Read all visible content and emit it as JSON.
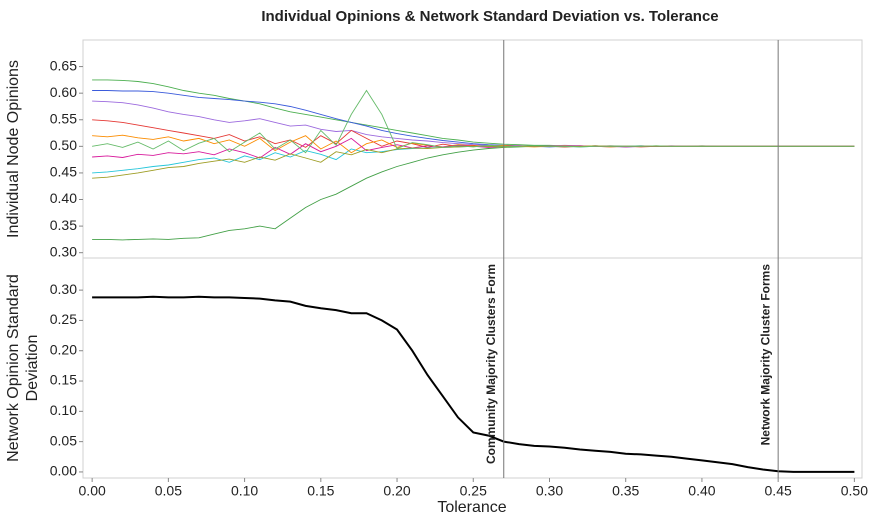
{
  "chart_data": [
    {
      "type": "line",
      "title": "Individual Opinions & Network Standard Deviation vs. Tolerance",
      "ylabel": "Individual Node Opinions",
      "xlim": [
        -0.006,
        0.505
      ],
      "ylim": [
        0.29,
        0.7
      ],
      "yticks": [
        {
          "value": 0.3,
          "label": "0.30"
        },
        {
          "value": 0.35,
          "label": "0.35"
        },
        {
          "value": 0.4,
          "label": "0.40"
        },
        {
          "value": 0.45,
          "label": "0.45"
        },
        {
          "value": 0.5,
          "label": "0.50"
        },
        {
          "value": 0.55,
          "label": "0.55"
        },
        {
          "value": 0.6,
          "label": "0.60"
        },
        {
          "value": 0.65,
          "label": "0.65"
        }
      ],
      "x": [
        0,
        0.01,
        0.02,
        0.03,
        0.04,
        0.05,
        0.06,
        0.07,
        0.08,
        0.09,
        0.1,
        0.11,
        0.12,
        0.13,
        0.14,
        0.15,
        0.16,
        0.17,
        0.18,
        0.19,
        0.2,
        0.21,
        0.22,
        0.23,
        0.24,
        0.25,
        0.26,
        0.27,
        0.28,
        0.29,
        0.3,
        0.31,
        0.32,
        0.33,
        0.34,
        0.35,
        0.36,
        0.37,
        0.38,
        0.39,
        0.4,
        0.41,
        0.42,
        0.43,
        0.44,
        0.45,
        0.46,
        0.47,
        0.48,
        0.49,
        0.5
      ],
      "series": [
        {
          "color": "#4caf50",
          "values": [
            0.625,
            0.625,
            0.624,
            0.622,
            0.618,
            0.612,
            0.605,
            0.6,
            0.596,
            0.59,
            0.585,
            0.58,
            0.572,
            0.565,
            0.56,
            0.555,
            0.55,
            0.545,
            0.54,
            0.535,
            0.53,
            0.525,
            0.52,
            0.515,
            0.512,
            0.508,
            0.506,
            0.504,
            0.503,
            0.502,
            0.502,
            0.501,
            0.501,
            0.5,
            0.5,
            0.5,
            0.501,
            0.5,
            0.5,
            0.5,
            0.501,
            0.5,
            0.5,
            0.5,
            0.5,
            0.5,
            0.5,
            0.5,
            0.5,
            0.5,
            0.5
          ]
        },
        {
          "color": "#3b5bdb",
          "values": [
            0.605,
            0.605,
            0.604,
            0.604,
            0.603,
            0.6,
            0.596,
            0.592,
            0.59,
            0.588,
            0.585,
            0.583,
            0.58,
            0.575,
            0.568,
            0.56,
            0.552,
            0.545,
            0.538,
            0.53,
            0.524,
            0.519,
            0.515,
            0.511,
            0.508,
            0.505,
            0.503,
            0.502,
            0.501,
            0.5,
            0.499,
            0.5,
            0.5,
            0.501,
            0.5,
            0.499,
            0.5,
            0.5,
            0.5,
            0.5,
            0.5,
            0.5,
            0.5,
            0.5,
            0.5,
            0.5,
            0.5,
            0.5,
            0.5,
            0.5,
            0.5
          ]
        },
        {
          "color": "#9c6ade",
          "values": [
            0.585,
            0.584,
            0.582,
            0.578,
            0.572,
            0.565,
            0.56,
            0.556,
            0.55,
            0.545,
            0.548,
            0.552,
            0.545,
            0.538,
            0.54,
            0.532,
            0.528,
            0.53,
            0.522,
            0.518,
            0.515,
            0.512,
            0.51,
            0.507,
            0.505,
            0.503,
            0.502,
            0.501,
            0.5,
            0.5,
            0.501,
            0.502,
            0.501,
            0.5,
            0.499,
            0.5,
            0.5,
            0.5,
            0.501,
            0.5,
            0.5,
            0.5,
            0.5,
            0.5,
            0.5,
            0.5,
            0.5,
            0.5,
            0.5,
            0.5,
            0.5
          ]
        },
        {
          "color": "#43a047",
          "values": [
            0.325,
            0.325,
            0.324,
            0.325,
            0.326,
            0.325,
            0.327,
            0.328,
            0.335,
            0.342,
            0.345,
            0.35,
            0.345,
            0.365,
            0.385,
            0.4,
            0.41,
            0.425,
            0.44,
            0.452,
            0.462,
            0.47,
            0.478,
            0.484,
            0.489,
            0.493,
            0.496,
            0.498,
            0.499,
            0.5,
            0.5,
            0.499,
            0.5,
            0.5,
            0.501,
            0.5,
            0.5,
            0.5,
            0.5,
            0.5,
            0.5,
            0.5,
            0.5,
            0.5,
            0.5,
            0.5,
            0.5,
            0.5,
            0.5,
            0.5,
            0.5
          ]
        },
        {
          "color": "#e53935",
          "values": [
            0.55,
            0.548,
            0.545,
            0.54,
            0.535,
            0.53,
            0.525,
            0.52,
            0.515,
            0.522,
            0.51,
            0.518,
            0.505,
            0.512,
            0.498,
            0.52,
            0.505,
            0.53,
            0.515,
            0.5,
            0.51,
            0.505,
            0.498,
            0.504,
            0.5,
            0.502,
            0.499,
            0.501,
            0.5,
            0.5,
            0.5,
            0.499,
            0.5,
            0.501,
            0.5,
            0.5,
            0.499,
            0.5,
            0.5,
            0.5,
            0.5,
            0.5,
            0.5,
            0.5,
            0.5,
            0.5,
            0.5,
            0.5,
            0.5,
            0.5,
            0.5
          ]
        },
        {
          "color": "#26c6da",
          "values": [
            0.45,
            0.452,
            0.455,
            0.458,
            0.462,
            0.465,
            0.47,
            0.475,
            0.478,
            0.47,
            0.482,
            0.475,
            0.488,
            0.48,
            0.492,
            0.485,
            0.475,
            0.495,
            0.488,
            0.49,
            0.494,
            0.496,
            0.497,
            0.498,
            0.499,
            0.5,
            0.499,
            0.5,
            0.501,
            0.5,
            0.5,
            0.5,
            0.499,
            0.5,
            0.5,
            0.5,
            0.501,
            0.5,
            0.5,
            0.5,
            0.5,
            0.5,
            0.5,
            0.5,
            0.5,
            0.5,
            0.5,
            0.5,
            0.5,
            0.5,
            0.5
          ]
        },
        {
          "color": "#fb8c00",
          "values": [
            0.52,
            0.518,
            0.521,
            0.516,
            0.513,
            0.518,
            0.51,
            0.515,
            0.505,
            0.512,
            0.5,
            0.515,
            0.492,
            0.508,
            0.52,
            0.495,
            0.51,
            0.488,
            0.505,
            0.512,
            0.498,
            0.506,
            0.502,
            0.499,
            0.503,
            0.501,
            0.5,
            0.502,
            0.5,
            0.499,
            0.5,
            0.501,
            0.5,
            0.5,
            0.499,
            0.5,
            0.5,
            0.501,
            0.5,
            0.5,
            0.5,
            0.5,
            0.5,
            0.5,
            0.5,
            0.5,
            0.5,
            0.5,
            0.5,
            0.5,
            0.5
          ]
        },
        {
          "color": "#d81b9c",
          "values": [
            0.48,
            0.482,
            0.479,
            0.485,
            0.483,
            0.488,
            0.486,
            0.49,
            0.484,
            0.495,
            0.488,
            0.478,
            0.498,
            0.485,
            0.505,
            0.49,
            0.5,
            0.515,
            0.492,
            0.498,
            0.503,
            0.497,
            0.501,
            0.499,
            0.502,
            0.5,
            0.498,
            0.5,
            0.501,
            0.5,
            0.5,
            0.5,
            0.501,
            0.5,
            0.5,
            0.499,
            0.5,
            0.5,
            0.5,
            0.5,
            0.5,
            0.5,
            0.5,
            0.5,
            0.5,
            0.5,
            0.5,
            0.5,
            0.5,
            0.5,
            0.5
          ]
        },
        {
          "color": "#9e9d24",
          "values": [
            0.44,
            0.442,
            0.446,
            0.45,
            0.455,
            0.46,
            0.462,
            0.468,
            0.472,
            0.476,
            0.47,
            0.48,
            0.474,
            0.486,
            0.478,
            0.47,
            0.49,
            0.484,
            0.494,
            0.488,
            0.495,
            0.497,
            0.496,
            0.498,
            0.499,
            0.5,
            0.5,
            0.499,
            0.5,
            0.5,
            0.5,
            0.5,
            0.5,
            0.501,
            0.5,
            0.5,
            0.5,
            0.5,
            0.5,
            0.5,
            0.5,
            0.5,
            0.5,
            0.5,
            0.5,
            0.5,
            0.5,
            0.5,
            0.5,
            0.5,
            0.5
          ]
        },
        {
          "color": "#66bb6a",
          "values": [
            0.5,
            0.505,
            0.498,
            0.508,
            0.495,
            0.51,
            0.492,
            0.506,
            0.515,
            0.49,
            0.508,
            0.525,
            0.495,
            0.512,
            0.488,
            0.53,
            0.502,
            0.56,
            0.605,
            0.56,
            0.496,
            0.507,
            0.503,
            0.498,
            0.501,
            0.499,
            0.502,
            0.5,
            0.5,
            0.501,
            0.5,
            0.5,
            0.499,
            0.5,
            0.5,
            0.5,
            0.5,
            0.501,
            0.5,
            0.5,
            0.5,
            0.5,
            0.5,
            0.5,
            0.5,
            0.5,
            0.5,
            0.5,
            0.5,
            0.5,
            0.5
          ]
        }
      ]
    },
    {
      "type": "line",
      "ylabel": [
        "Network Opinion Standard",
        "Deviation"
      ],
      "xlabel": "Tolerance",
      "xlim": [
        -0.006,
        0.505
      ],
      "ylim": [
        -0.01,
        0.353
      ],
      "xticks": [
        {
          "value": 0,
          "label": "0.00"
        },
        {
          "value": 0.05,
          "label": "0.05"
        },
        {
          "value": 0.1,
          "label": "0.10"
        },
        {
          "value": 0.15,
          "label": "0.15"
        },
        {
          "value": 0.2,
          "label": "0.20"
        },
        {
          "value": 0.25,
          "label": "0.25"
        },
        {
          "value": 0.3,
          "label": "0.30"
        },
        {
          "value": 0.35,
          "label": "0.35"
        },
        {
          "value": 0.4,
          "label": "0.40"
        },
        {
          "value": 0.45,
          "label": "0.45"
        },
        {
          "value": 0.5,
          "label": "0.50"
        }
      ],
      "yticks": [
        {
          "value": 0,
          "label": "0.00"
        },
        {
          "value": 0.05,
          "label": "0.05"
        },
        {
          "value": 0.1,
          "label": "0.10"
        },
        {
          "value": 0.15,
          "label": "0.15"
        },
        {
          "value": 0.2,
          "label": "0.20"
        },
        {
          "value": 0.25,
          "label": "0.25"
        },
        {
          "value": 0.3,
          "label": "0.30"
        }
      ],
      "x": [
        0,
        0.01,
        0.02,
        0.03,
        0.04,
        0.05,
        0.06,
        0.07,
        0.08,
        0.09,
        0.1,
        0.11,
        0.12,
        0.13,
        0.14,
        0.15,
        0.16,
        0.17,
        0.18,
        0.19,
        0.2,
        0.21,
        0.22,
        0.23,
        0.24,
        0.25,
        0.26,
        0.27,
        0.28,
        0.29,
        0.3,
        0.31,
        0.32,
        0.33,
        0.34,
        0.35,
        0.36,
        0.37,
        0.38,
        0.39,
        0.4,
        0.41,
        0.42,
        0.43,
        0.44,
        0.45,
        0.46,
        0.47,
        0.48,
        0.49,
        0.5
      ],
      "series": [
        {
          "color": "#000000",
          "values": [
            0.288,
            0.288,
            0.288,
            0.288,
            0.289,
            0.288,
            0.288,
            0.289,
            0.288,
            0.288,
            0.287,
            0.286,
            0.283,
            0.281,
            0.274,
            0.27,
            0.267,
            0.262,
            0.262,
            0.25,
            0.235,
            0.2,
            0.16,
            0.125,
            0.09,
            0.065,
            0.06,
            0.05,
            0.046,
            0.043,
            0.042,
            0.04,
            0.037,
            0.035,
            0.033,
            0.03,
            0.029,
            0.027,
            0.025,
            0.022,
            0.019,
            0.016,
            0.013,
            0.008,
            0.004,
            0.001,
            0,
            0,
            0,
            0,
            0
          ]
        }
      ],
      "vlines": [
        {
          "x": 0.27,
          "label": "Community Majority Clusters Form"
        },
        {
          "x": 0.45,
          "label": "Network Majority Cluster Forms"
        }
      ]
    }
  ]
}
